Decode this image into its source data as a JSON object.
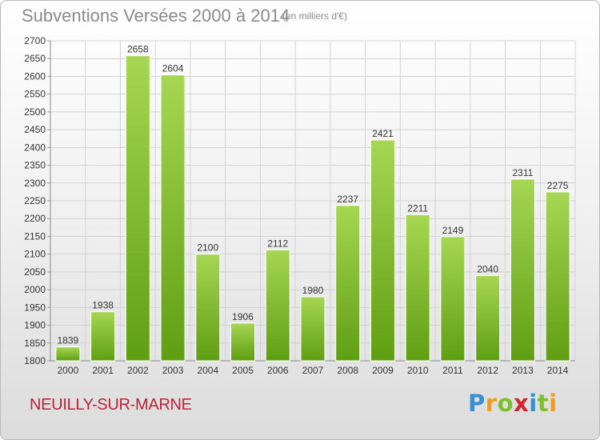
{
  "title": "Subventions Versées 2000 à 2014",
  "unit": "(en milliers d'€)",
  "commune": "NEUILLY-SUR-MARNE",
  "logo": {
    "letters": [
      "P",
      "r",
      "o",
      "x",
      "i",
      "t",
      "i"
    ],
    "colors": [
      "#3a8fd0",
      "#f29a1f",
      "#7bbf2a",
      "#d6242a",
      "#3a8fd0",
      "#7bbf2a",
      "#f29a1f"
    ]
  },
  "colors": {
    "bar_top": "#a6d653",
    "bar_bottom": "#5f9e12",
    "grid": "#d2d2d2",
    "text": "#333333"
  },
  "chart_data": {
    "type": "bar",
    "categories": [
      "2000",
      "2001",
      "2002",
      "2003",
      "2004",
      "2005",
      "2006",
      "2007",
      "2008",
      "2009",
      "2010",
      "2011",
      "2012",
      "2013",
      "2014"
    ],
    "values": [
      1839,
      1938,
      2658,
      2604,
      2100,
      1906,
      2112,
      1980,
      2237,
      2421,
      2211,
      2149,
      2040,
      2311,
      2275
    ],
    "ylim": [
      1800,
      2700
    ],
    "ytick_step": 50,
    "grid": true
  }
}
